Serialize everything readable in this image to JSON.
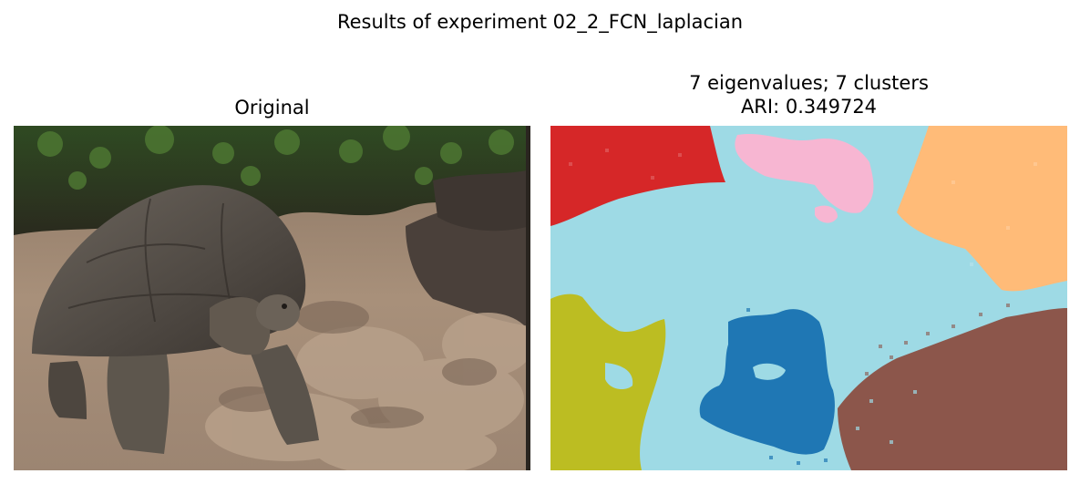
{
  "figure": {
    "suptitle": "Results of experiment 02_2_FCN_laplacian"
  },
  "panels": {
    "left": {
      "title": "Original",
      "image": "tortoise-photo"
    },
    "right": {
      "title_line1": "7 eigenvalues; 7 clusters",
      "title_line2": "ARI: 0.349724",
      "image": "segmentation-map"
    }
  },
  "colors": {
    "cluster_red": "#d62728",
    "cluster_pink": "#f7b6d2",
    "cluster_orange": "#ffbb78",
    "cluster_lightblue": "#9edae5",
    "cluster_olive": "#bcbd22",
    "cluster_blue": "#1f77b4",
    "cluster_brown": "#8c564b"
  }
}
